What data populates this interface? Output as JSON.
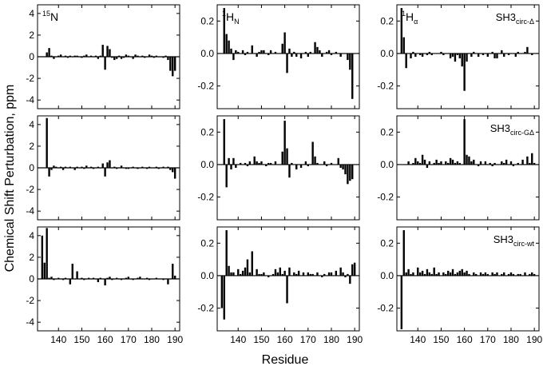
{
  "figure": {
    "xlabel": "Residue",
    "ylabel": "Chemical Shift Perturbation, ppm"
  },
  "chart_data": {
    "type": "bar",
    "layout": "3x3 panel grid, columns = nuclei, rows = SH3 constructs",
    "xlabel": "Residue",
    "ylabel": "Chemical Shift Perturbation, ppm",
    "xlim": [
      131,
      192
    ],
    "xticks": [
      140,
      150,
      160,
      170,
      180,
      190
    ],
    "column_labels": [
      {
        "main": "15",
        "sub": "",
        "sup_first": true,
        "rest": "N"
      },
      {
        "main": "1",
        "sup_first": true,
        "rest": "H",
        "sub": "N"
      },
      {
        "main": "1",
        "sup_first": true,
        "rest": "H",
        "sub": "α"
      }
    ],
    "row_labels": [
      {
        "main": "SH3",
        "sub": "circ-Δ"
      },
      {
        "main": "SH3",
        "sub": "circ-GΔ"
      },
      {
        "main": "SH3",
        "sub": "circ-wt"
      }
    ],
    "axes": [
      {
        "ylim": [
          -4.8,
          4.8
        ],
        "yticks": [
          -4,
          -2,
          0,
          2,
          4
        ]
      },
      {
        "ylim": [
          -0.34,
          0.3
        ],
        "yticks": [
          -0.2,
          0.0,
          0.2
        ]
      },
      {
        "ylim": [
          -0.34,
          0.3
        ],
        "yticks": [
          -0.2,
          0.0,
          0.2
        ]
      }
    ],
    "panels": [
      {
        "row": 0,
        "col": 0,
        "x": [
          135,
          136,
          137,
          138,
          139,
          140,
          141,
          142,
          143,
          144,
          145,
          146,
          147,
          148,
          149,
          150,
          151,
          152,
          153,
          154,
          155,
          156,
          157,
          158,
          159,
          160,
          161,
          162,
          163,
          164,
          165,
          166,
          167,
          168,
          169,
          170,
          171,
          172,
          173,
          174,
          175,
          176,
          177,
          178,
          179,
          180,
          181,
          182,
          183,
          184,
          185,
          186,
          187,
          188,
          189,
          190
        ],
        "values": [
          0.4,
          0.8,
          0.1,
          -0.2,
          0.0,
          0.1,
          0.2,
          0.0,
          0.1,
          -0.1,
          0.1,
          0.0,
          0.1,
          0.1,
          0.0,
          -0.1,
          0.1,
          0.2,
          0.0,
          0.1,
          0.0,
          0.1,
          -0.2,
          0.1,
          1.1,
          -1.2,
          1.0,
          0.7,
          -0.1,
          -0.3,
          -0.2,
          0.1,
          -0.2,
          -0.1,
          0.2,
          0.1,
          0.0,
          -0.2,
          0.2,
          0.1,
          0.0,
          0.1,
          -0.1,
          0.0,
          0.2,
          0.1,
          -0.1,
          0.1,
          0.0,
          0.0,
          -0.1,
          0.1,
          -0.3,
          -1.3,
          -1.8,
          -1.3
        ]
      },
      {
        "row": 0,
        "col": 1,
        "x": [
          134,
          135,
          136,
          137,
          138,
          139,
          140,
          141,
          142,
          143,
          144,
          145,
          146,
          147,
          148,
          149,
          150,
          151,
          152,
          153,
          154,
          155,
          156,
          157,
          158,
          159,
          160,
          161,
          162,
          163,
          164,
          165,
          166,
          167,
          168,
          169,
          170,
          171,
          172,
          173,
          174,
          175,
          176,
          177,
          178,
          179,
          180,
          181,
          182,
          183,
          184,
          185,
          186,
          187,
          188,
          189,
          190
        ],
        "values": [
          0.28,
          0.12,
          0.08,
          0.03,
          -0.04,
          0.02,
          0.01,
          0.0,
          0.02,
          -0.01,
          0.01,
          0.0,
          0.05,
          0.0,
          -0.02,
          0.01,
          0.02,
          0.02,
          0.0,
          -0.01,
          0.02,
          0.0,
          0.01,
          0.0,
          0.0,
          0.06,
          0.13,
          -0.12,
          0.03,
          -0.02,
          0.01,
          -0.02,
          0.0,
          -0.03,
          0.0,
          0.01,
          -0.02,
          0.01,
          0.0,
          0.07,
          0.04,
          0.02,
          -0.02,
          0.0,
          0.01,
          0.02,
          -0.01,
          0.0,
          0.01,
          0.0,
          -0.02,
          0.0,
          0.0,
          -0.04,
          -0.1,
          -0.28,
          0.0
        ]
      },
      {
        "row": 0,
        "col": 2,
        "x": [
          133,
          134,
          135,
          136,
          137,
          138,
          139,
          140,
          141,
          142,
          143,
          144,
          145,
          146,
          147,
          148,
          149,
          150,
          151,
          152,
          153,
          154,
          155,
          156,
          157,
          158,
          159,
          160,
          161,
          162,
          163,
          164,
          165,
          166,
          167,
          168,
          169,
          170,
          171,
          172,
          173,
          174,
          175,
          176,
          177,
          178,
          179,
          180,
          181,
          182,
          183,
          184,
          185,
          186,
          187,
          188,
          189,
          190
        ],
        "values": [
          0.28,
          0.1,
          -0.09,
          0.0,
          -0.03,
          0.01,
          -0.02,
          0.0,
          -0.01,
          -0.02,
          0.0,
          -0.01,
          0.01,
          -0.01,
          0.0,
          0.0,
          0.0,
          0.01,
          -0.01,
          0.0,
          0.0,
          -0.03,
          -0.02,
          -0.05,
          -0.01,
          -0.03,
          -0.08,
          -0.23,
          -0.05,
          0.0,
          -0.02,
          0.01,
          0.0,
          -0.02,
          0.0,
          -0.01,
          0.0,
          -0.02,
          0.0,
          0.01,
          -0.03,
          -0.03,
          0.0,
          0.02,
          -0.02,
          0.0,
          -0.01,
          0.0,
          0.0,
          -0.02,
          0.01,
          0.0,
          0.0,
          0.01,
          0.04,
          0.0,
          -0.01,
          0.0
        ]
      },
      {
        "row": 1,
        "col": 0,
        "x": [
          135,
          136,
          137,
          138,
          139,
          140,
          141,
          142,
          143,
          144,
          145,
          146,
          147,
          148,
          149,
          150,
          151,
          152,
          153,
          154,
          155,
          156,
          157,
          158,
          159,
          160,
          161,
          162,
          163,
          164,
          165,
          166,
          167,
          168,
          169,
          170,
          171,
          172,
          173,
          174,
          175,
          176,
          177,
          178,
          179,
          180,
          181,
          182,
          183,
          184,
          185,
          186,
          187,
          188,
          189,
          190
        ],
        "values": [
          4.6,
          -0.8,
          -0.2,
          0.2,
          0.1,
          0.0,
          0.1,
          -0.2,
          0.1,
          0.0,
          0.1,
          0.0,
          -0.2,
          0.1,
          0.0,
          0.1,
          -0.1,
          0.2,
          0.0,
          0.1,
          -0.1,
          0.0,
          0.1,
          0.0,
          0.4,
          -0.8,
          0.5,
          0.7,
          0.0,
          0.1,
          -0.1,
          0.0,
          0.2,
          0.0,
          -0.1,
          -0.1,
          0.0,
          0.1,
          0.0,
          -0.1,
          0.0,
          0.1,
          0.0,
          -0.1,
          0.1,
          0.0,
          0.0,
          0.1,
          -0.1,
          0.0,
          0.1,
          0.0,
          0.1,
          -0.2,
          -0.4,
          -1.0
        ]
      },
      {
        "row": 1,
        "col": 1,
        "x": [
          134,
          135,
          136,
          137,
          138,
          139,
          140,
          141,
          142,
          143,
          144,
          145,
          146,
          147,
          148,
          149,
          150,
          151,
          152,
          153,
          154,
          155,
          156,
          157,
          158,
          159,
          160,
          161,
          162,
          163,
          164,
          165,
          166,
          167,
          168,
          169,
          170,
          171,
          172,
          173,
          174,
          175,
          176,
          177,
          178,
          179,
          180,
          181,
          182,
          183,
          184,
          185,
          186,
          187,
          188,
          189,
          190
        ],
        "values": [
          0.28,
          -0.14,
          0.04,
          -0.03,
          0.04,
          -0.02,
          0.0,
          0.01,
          0.0,
          0.01,
          -0.01,
          0.02,
          0.0,
          0.05,
          0.02,
          0.01,
          0.02,
          0.0,
          -0.01,
          0.01,
          0.01,
          0.0,
          0.02,
          0.0,
          0.0,
          0.08,
          0.27,
          0.1,
          -0.08,
          0.01,
          0.0,
          -0.03,
          0.0,
          -0.02,
          0.0,
          0.02,
          -0.01,
          0.0,
          0.14,
          0.05,
          0.01,
          0.0,
          0.0,
          0.02,
          -0.01,
          0.0,
          0.01,
          0.0,
          0.0,
          0.04,
          -0.02,
          -0.03,
          -0.06,
          -0.12,
          -0.1,
          -0.09,
          0.0
        ]
      },
      {
        "row": 1,
        "col": 2,
        "x": [
          134,
          135,
          136,
          137,
          138,
          139,
          140,
          141,
          142,
          143,
          144,
          145,
          146,
          147,
          148,
          149,
          150,
          151,
          152,
          153,
          154,
          155,
          156,
          157,
          158,
          159,
          160,
          161,
          162,
          163,
          164,
          165,
          166,
          167,
          168,
          169,
          170,
          171,
          172,
          173,
          174,
          175,
          176,
          177,
          178,
          179,
          180,
          181,
          182,
          183,
          184,
          185,
          186,
          187,
          188,
          189,
          190
        ],
        "values": [
          0.0,
          0.0,
          0.02,
          0.0,
          0.01,
          0.04,
          0.02,
          0.01,
          0.06,
          0.03,
          -0.02,
          0.02,
          0.0,
          0.01,
          0.03,
          0.01,
          0.02,
          0.0,
          0.02,
          0.01,
          0.04,
          0.03,
          0.01,
          0.02,
          0.01,
          0.0,
          0.28,
          0.06,
          0.05,
          0.02,
          0.03,
          0.0,
          -0.01,
          0.02,
          0.0,
          0.02,
          0.0,
          0.01,
          -0.01,
          0.01,
          0.0,
          0.0,
          0.02,
          0.01,
          0.03,
          0.0,
          0.02,
          -0.01,
          0.0,
          0.01,
          0.0,
          0.03,
          0.0,
          0.05,
          0.01,
          0.07,
          0.01
        ]
      },
      {
        "row": 2,
        "col": 0,
        "x": [
          133,
          134,
          135,
          136,
          137,
          138,
          139,
          140,
          141,
          142,
          143,
          144,
          145,
          146,
          147,
          148,
          149,
          150,
          151,
          152,
          153,
          154,
          155,
          156,
          157,
          158,
          159,
          160,
          161,
          162,
          163,
          164,
          165,
          166,
          167,
          168,
          169,
          170,
          171,
          172,
          173,
          174,
          175,
          176,
          177,
          178,
          179,
          180,
          181,
          182,
          183,
          184,
          185,
          186,
          187,
          188,
          189,
          190
        ],
        "values": [
          4.0,
          1.5,
          4.7,
          0.1,
          0.2,
          -0.1,
          0.0,
          0.1,
          0.0,
          -0.1,
          0.1,
          0.0,
          -0.5,
          1.4,
          0.0,
          0.7,
          0.0,
          0.1,
          -0.1,
          0.0,
          0.1,
          0.0,
          0.1,
          0.0,
          -0.3,
          0.1,
          0.0,
          -0.6,
          0.1,
          0.2,
          -0.1,
          0.0,
          0.1,
          0.0,
          -0.1,
          0.0,
          0.1,
          0.2,
          0.0,
          -0.1,
          0.0,
          0.1,
          0.2,
          0.0,
          0.0,
          0.1,
          -0.1,
          0.0,
          0.0,
          0.1,
          0.0,
          0.0,
          -0.1,
          0.0,
          -0.5,
          0.0,
          1.4,
          0.3
        ]
      },
      {
        "row": 2,
        "col": 1,
        "x": [
          133,
          134,
          135,
          136,
          137,
          138,
          139,
          140,
          141,
          142,
          143,
          144,
          145,
          146,
          147,
          148,
          149,
          150,
          151,
          152,
          153,
          154,
          155,
          156,
          157,
          158,
          159,
          160,
          161,
          162,
          163,
          164,
          165,
          166,
          167,
          168,
          169,
          170,
          171,
          172,
          173,
          174,
          175,
          176,
          177,
          178,
          179,
          180,
          181,
          182,
          183,
          184,
          185,
          186,
          187,
          188,
          189,
          190
        ],
        "values": [
          -0.2,
          -0.27,
          0.28,
          0.06,
          0.02,
          0.02,
          0.0,
          0.04,
          0.01,
          0.03,
          0.05,
          0.1,
          0.02,
          0.15,
          0.0,
          0.04,
          0.01,
          0.01,
          0.02,
          0.0,
          -0.01,
          0.0,
          0.01,
          0.04,
          0.02,
          0.05,
          0.01,
          0.03,
          -0.17,
          0.05,
          0.0,
          0.02,
          0.01,
          0.03,
          0.0,
          0.02,
          0.0,
          0.02,
          0.01,
          0.01,
          0.0,
          0.02,
          0.0,
          -0.01,
          0.01,
          0.0,
          0.02,
          0.02,
          0.0,
          0.03,
          0.0,
          0.05,
          0.02,
          -0.01,
          0.01,
          -0.05,
          0.07,
          0.08
        ]
      },
      {
        "row": 2,
        "col": 2,
        "x": [
          133,
          134,
          135,
          136,
          137,
          138,
          139,
          140,
          141,
          142,
          143,
          144,
          145,
          146,
          147,
          148,
          149,
          150,
          151,
          152,
          153,
          154,
          155,
          156,
          157,
          158,
          159,
          160,
          161,
          162,
          163,
          164,
          165,
          166,
          167,
          168,
          169,
          170,
          171,
          172,
          173,
          174,
          175,
          176,
          177,
          178,
          179,
          180,
          181,
          182,
          183,
          184,
          185,
          186,
          187,
          188,
          189,
          190
        ],
        "values": [
          -0.33,
          0.28,
          0.02,
          0.04,
          0.01,
          0.02,
          0.0,
          0.05,
          0.02,
          0.03,
          0.01,
          0.04,
          0.02,
          0.01,
          0.05,
          0.01,
          0.02,
          0.0,
          0.02,
          0.01,
          0.03,
          0.02,
          0.04,
          0.01,
          0.02,
          0.03,
          0.04,
          0.02,
          0.03,
          0.01,
          0.0,
          0.02,
          0.01,
          0.0,
          0.02,
          0.01,
          0.02,
          0.01,
          0.0,
          0.02,
          0.01,
          0.02,
          0.0,
          0.01,
          0.02,
          0.0,
          0.01,
          0.02,
          0.01,
          0.0,
          0.01,
          0.01,
          0.0,
          0.02,
          0.0,
          0.01,
          0.02,
          0.01
        ]
      }
    ]
  }
}
